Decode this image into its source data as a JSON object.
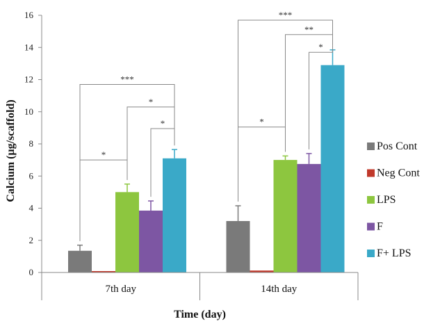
{
  "chart_data": {
    "type": "bar",
    "xlabel": "Time (day)",
    "ylabel": "Calcium (µg/scaffold)",
    "ylim": [
      0,
      16
    ],
    "yticks": [
      0,
      2,
      4,
      6,
      8,
      10,
      12,
      14,
      16
    ],
    "grid": false,
    "legend_position": "right",
    "categories": [
      "7th day",
      "14th day"
    ],
    "series": [
      {
        "name": "Pos Cont",
        "color": "#7a7a7a",
        "values": [
          1.35,
          3.2
        ],
        "errors": [
          0.35,
          0.95
        ]
      },
      {
        "name": "Neg Cont",
        "color": "#c0392b",
        "values": [
          0.08,
          0.12
        ],
        "errors": [
          0,
          0
        ]
      },
      {
        "name": "LPS",
        "color": "#8dc63f",
        "values": [
          5.0,
          7.0
        ],
        "errors": [
          0.5,
          0.25
        ]
      },
      {
        "name": "F",
        "color": "#7d56a3",
        "values": [
          3.85,
          6.75
        ],
        "errors": [
          0.6,
          0.65
        ]
      },
      {
        "name": "F+ LPS",
        "color": "#3aa9c8",
        "values": [
          7.1,
          12.9
        ],
        "errors": [
          0.55,
          0.95
        ]
      }
    ],
    "significance": [
      {
        "category": 0,
        "from": 0,
        "to": 2,
        "y": 7.0,
        "label": "*"
      },
      {
        "category": 0,
        "from": 0,
        "to": 4,
        "y": 11.7,
        "label": "***"
      },
      {
        "category": 0,
        "from": 2,
        "to": 4,
        "y": 10.3,
        "label": "*"
      },
      {
        "category": 0,
        "from": 3,
        "to": 4,
        "y": 8.95,
        "label": "*"
      },
      {
        "category": 1,
        "from": 0,
        "to": 2,
        "y": 9.05,
        "label": "*"
      },
      {
        "category": 1,
        "from": 0,
        "to": 4,
        "y": 15.7,
        "label": "***"
      },
      {
        "category": 1,
        "from": 2,
        "to": 4,
        "y": 14.8,
        "label": "**"
      },
      {
        "category": 1,
        "from": 3,
        "to": 4,
        "y": 13.7,
        "label": "*"
      }
    ]
  }
}
